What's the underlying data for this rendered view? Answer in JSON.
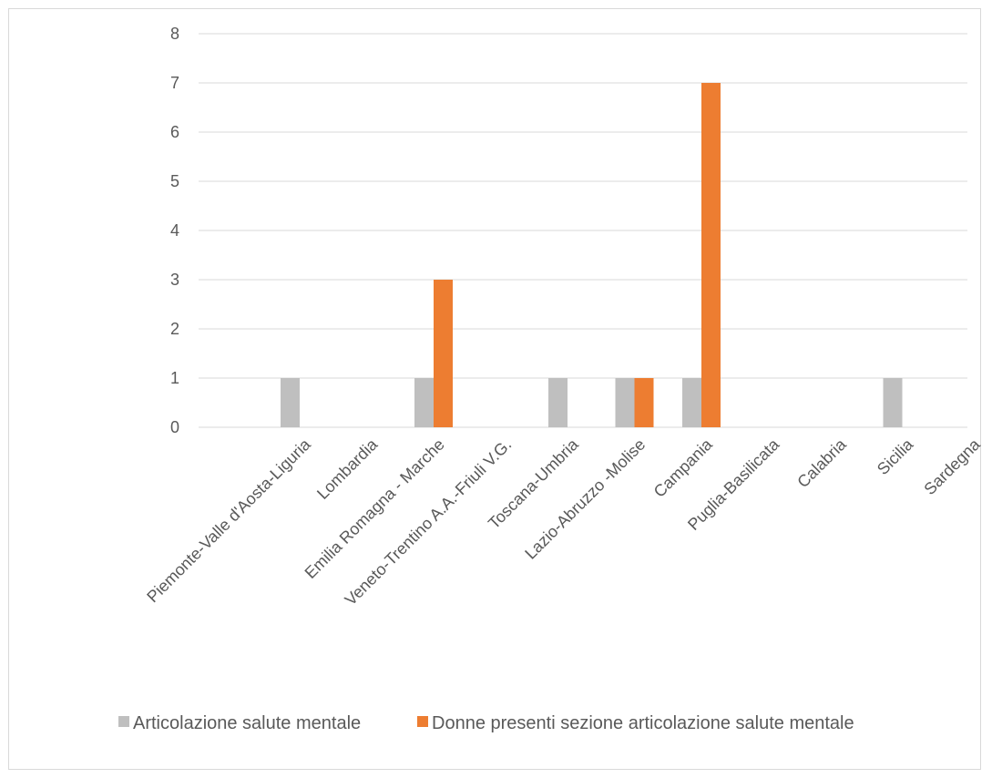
{
  "chart_data": {
    "type": "bar",
    "categories": [
      "Piemonte-Valle d'Aosta-Liguria",
      "Lombardia",
      "Emilia Romagna - Marche",
      "Veneto-Trentino A.A.-Friuli V.G.",
      "Toscana-Umbria",
      "Lazio-Abruzzo -Molise",
      "Campania",
      "Puglia-Basilicata",
      "Calabria",
      "Sicilia",
      "Sardegna"
    ],
    "series": [
      {
        "name": "Articolazione salute mentale",
        "color": "#bfbfbf",
        "values": [
          1,
          0,
          1,
          0,
          1,
          1,
          1,
          0,
          0,
          1,
          0
        ]
      },
      {
        "name": "Donne presenti sezione articolazione salute mentale",
        "color": "#ed7d31",
        "values": [
          0,
          0,
          3,
          0,
          0,
          1,
          7,
          0,
          0,
          0,
          0
        ]
      }
    ],
    "ylim": [
      0,
      8
    ],
    "yticks": [
      0,
      1,
      2,
      3,
      4,
      5,
      6,
      7,
      8
    ],
    "grid": true,
    "legend_position": "bottom"
  }
}
